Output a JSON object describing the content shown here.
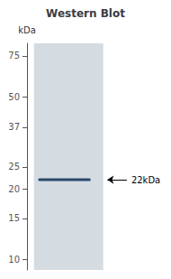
{
  "chart_data": {
    "type": "gel",
    "title": "Western Blot",
    "ylabel": "kDa",
    "log": "y",
    "ylim": [
      9,
      85
    ],
    "yticks": [
      75,
      50,
      37,
      25,
      20,
      15,
      10
    ],
    "values": [
      22
    ],
    "color": "#2a4a6a",
    "annotations": [
      {
        "text": "22kDa",
        "y": 22
      }
    ],
    "grid": false,
    "tick_labels": "y"
  }
}
